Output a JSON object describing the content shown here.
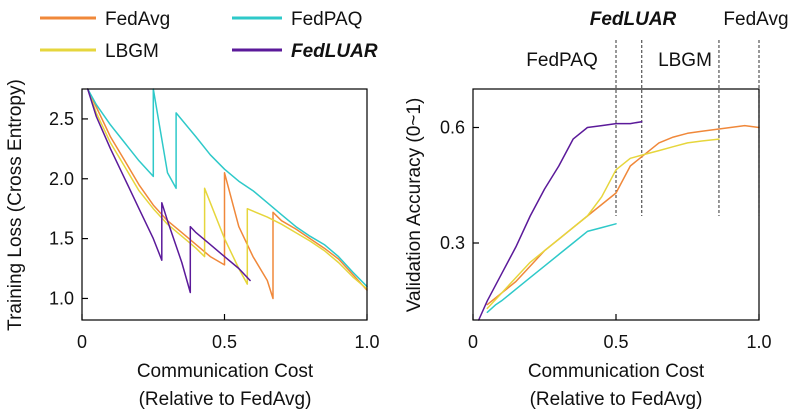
{
  "legend": [
    {
      "name": "FedAvg",
      "color": "#f0883a",
      "style": "normal"
    },
    {
      "name": "LBGM",
      "color": "#e6d63c",
      "style": "normal"
    },
    {
      "name": "FedPAQ",
      "color": "#2ec9c9",
      "style": "normal"
    },
    {
      "name": "FedLUAR",
      "color": "#5b1a9a",
      "style": "bold-italic"
    }
  ],
  "chart_data": [
    {
      "type": "line",
      "id": "training-loss",
      "xlabel": "Communication Cost",
      "xlabel2": "(Relative to FedAvg)",
      "ylabel": "Training Loss (Cross Entropy)",
      "xlim": [
        0,
        1.0
      ],
      "ylim": [
        0.82,
        2.75
      ],
      "xticks": [
        0,
        0.5,
        1.0
      ],
      "xtick_labels": [
        "0",
        "0.5",
        "1.0"
      ],
      "yticks": [
        1.0,
        1.5,
        2.0,
        2.5
      ],
      "ytick_labels": [
        "1.0",
        "1.5",
        "2.0",
        "2.5"
      ],
      "series": [
        {
          "name": "FedAvg",
          "color": "#f0883a",
          "x": [
            0.02,
            0.05,
            0.1,
            0.15,
            0.2,
            0.25,
            0.3,
            0.35,
            0.4,
            0.45,
            0.5,
            0.5,
            0.55,
            0.6,
            0.65,
            0.67,
            0.67,
            0.7,
            0.75,
            0.8,
            0.85,
            0.9,
            0.95,
            1.0
          ],
          "y": [
            2.75,
            2.6,
            2.35,
            2.15,
            1.95,
            1.78,
            1.65,
            1.55,
            1.45,
            1.35,
            1.28,
            2.05,
            1.6,
            1.35,
            1.15,
            1.0,
            1.72,
            1.65,
            1.58,
            1.5,
            1.42,
            1.33,
            1.2,
            1.07
          ]
        },
        {
          "name": "LBGM",
          "color": "#e6d63c",
          "x": [
            0.02,
            0.05,
            0.1,
            0.15,
            0.2,
            0.25,
            0.3,
            0.35,
            0.4,
            0.43,
            0.43,
            0.5,
            0.55,
            0.58,
            0.58,
            0.65,
            0.7,
            0.75,
            0.8,
            0.85,
            0.9,
            0.95,
            1.0
          ],
          "y": [
            2.75,
            2.55,
            2.3,
            2.1,
            1.9,
            1.75,
            1.62,
            1.52,
            1.42,
            1.35,
            1.92,
            1.5,
            1.25,
            1.12,
            1.75,
            1.68,
            1.62,
            1.55,
            1.48,
            1.4,
            1.3,
            1.18,
            1.08
          ]
        },
        {
          "name": "FedPAQ",
          "color": "#2ec9c9",
          "x": [
            0.02,
            0.05,
            0.1,
            0.15,
            0.2,
            0.25,
            0.25,
            0.3,
            0.33,
            0.33,
            0.4,
            0.45,
            0.5,
            0.55,
            0.6,
            0.65,
            0.7,
            0.75,
            0.8,
            0.85,
            0.9,
            0.95,
            1.0
          ],
          "y": [
            2.75,
            2.62,
            2.45,
            2.3,
            2.15,
            2.02,
            2.75,
            2.05,
            1.92,
            2.55,
            2.35,
            2.2,
            2.08,
            1.98,
            1.9,
            1.8,
            1.7,
            1.6,
            1.52,
            1.45,
            1.35,
            1.22,
            1.1
          ]
        },
        {
          "name": "FedLUAR",
          "color": "#5b1a9a",
          "x": [
            0.02,
            0.05,
            0.1,
            0.15,
            0.2,
            0.25,
            0.28,
            0.28,
            0.3,
            0.35,
            0.38,
            0.38,
            0.4,
            0.45,
            0.5,
            0.55,
            0.59
          ],
          "y": [
            2.75,
            2.52,
            2.25,
            2.0,
            1.75,
            1.5,
            1.32,
            1.8,
            1.65,
            1.3,
            1.05,
            1.6,
            1.55,
            1.45,
            1.35,
            1.25,
            1.15
          ]
        }
      ]
    },
    {
      "type": "line",
      "id": "validation-accuracy",
      "xlabel": "Communication Cost",
      "xlabel2": "(Relative to FedAvg)",
      "ylabel": "Validation Accuracy (0~1)",
      "xlim": [
        0,
        1.0
      ],
      "ylim": [
        0.1,
        0.7
      ],
      "xticks": [
        0,
        0.5,
        1.0
      ],
      "xtick_labels": [
        "0",
        "0.5",
        "1.0"
      ],
      "yticks": [
        0.3,
        0.6
      ],
      "ytick_labels": [
        "0.3",
        "0.6"
      ],
      "annotations": [
        {
          "text": "FedLUAR",
          "style": "bold-italic",
          "x": 0.5
        },
        {
          "text": "FedAvg",
          "style": "normal",
          "x": 1.0
        },
        {
          "text": "FedPAQ",
          "style": "normal",
          "x": 0.5
        },
        {
          "text": "LBGM",
          "style": "normal",
          "x": 0.86
        }
      ],
      "vlines": [
        0.5,
        0.59,
        0.86,
        1.0
      ],
      "series": [
        {
          "name": "FedAvg",
          "color": "#f0883a",
          "x": [
            0.05,
            0.1,
            0.15,
            0.2,
            0.25,
            0.3,
            0.35,
            0.4,
            0.45,
            0.5,
            0.55,
            0.6,
            0.65,
            0.7,
            0.75,
            0.8,
            0.85,
            0.9,
            0.95,
            1.0
          ],
          "y": [
            0.14,
            0.17,
            0.2,
            0.24,
            0.28,
            0.31,
            0.34,
            0.37,
            0.4,
            0.43,
            0.5,
            0.53,
            0.56,
            0.575,
            0.585,
            0.59,
            0.595,
            0.6,
            0.605,
            0.6
          ]
        },
        {
          "name": "LBGM",
          "color": "#e6d63c",
          "x": [
            0.05,
            0.1,
            0.15,
            0.2,
            0.25,
            0.3,
            0.35,
            0.4,
            0.45,
            0.5,
            0.55,
            0.6,
            0.65,
            0.7,
            0.75,
            0.8,
            0.86
          ],
          "y": [
            0.13,
            0.17,
            0.21,
            0.25,
            0.28,
            0.31,
            0.34,
            0.37,
            0.42,
            0.49,
            0.52,
            0.53,
            0.54,
            0.55,
            0.56,
            0.565,
            0.57
          ]
        },
        {
          "name": "FedPAQ",
          "color": "#2ec9c9",
          "x": [
            0.05,
            0.08,
            0.1,
            0.15,
            0.2,
            0.25,
            0.3,
            0.35,
            0.4,
            0.45,
            0.5
          ],
          "y": [
            0.12,
            0.14,
            0.15,
            0.18,
            0.21,
            0.24,
            0.27,
            0.3,
            0.33,
            0.34,
            0.35
          ]
        },
        {
          "name": "FedLUAR",
          "color": "#5b1a9a",
          "x": [
            0.02,
            0.05,
            0.1,
            0.15,
            0.2,
            0.25,
            0.3,
            0.35,
            0.4,
            0.45,
            0.5,
            0.55,
            0.59
          ],
          "y": [
            0.1,
            0.15,
            0.22,
            0.29,
            0.37,
            0.44,
            0.5,
            0.57,
            0.6,
            0.605,
            0.61,
            0.61,
            0.615
          ]
        }
      ]
    }
  ]
}
